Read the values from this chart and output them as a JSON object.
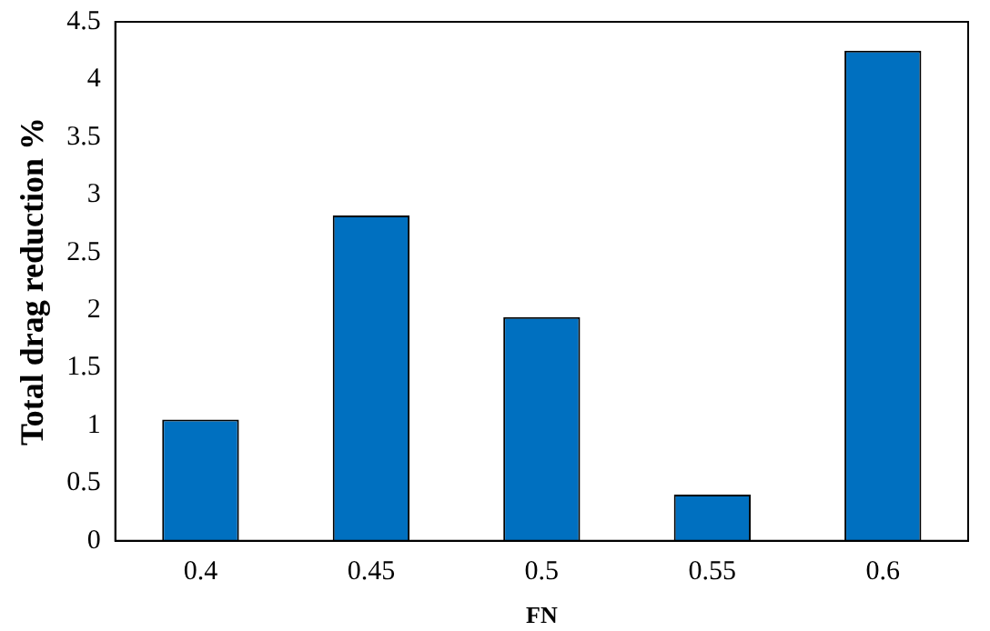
{
  "chart_data": {
    "type": "bar",
    "xlabel": "FN",
    "ylabel": "Total drag reduction %",
    "categories": [
      "0.4",
      "0.45",
      "0.5",
      "0.55",
      "0.6"
    ],
    "values": [
      1.05,
      2.82,
      1.94,
      0.4,
      4.25
    ],
    "color": "#0070c0",
    "ylim": [
      0,
      4.5
    ],
    "yticks": [
      0,
      0.5,
      1,
      1.5,
      2,
      2.5,
      3,
      3.5,
      4,
      4.5
    ],
    "grid": false,
    "legend": false
  }
}
